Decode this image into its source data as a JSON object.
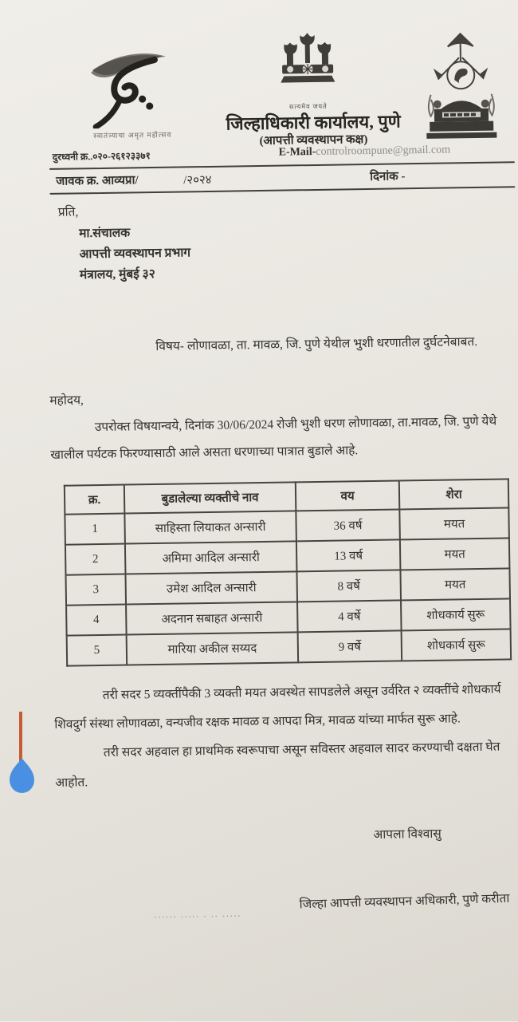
{
  "colors": {
    "paper": "#eae7e1",
    "ink": "#2f2e2a",
    "email_faded": "#8f8d86",
    "caret_line": "#c75b35",
    "selection_handle": "#4a90e2"
  },
  "document": {
    "header": {
      "amrit_logo_caption": "स्वातंत्र्याचा अमृत महोत्सव",
      "emblem_caption": "सत्यमेव जयते",
      "office_title": "जिल्हाधिकारी कार्यालय, पुणे",
      "office_subtitle": "(आपत्ती व्यवस्थापन कक्ष)",
      "phone_line": "दुरध्वनी क्र..०२०-२६१२३३७१",
      "email_label": "E-Mail-",
      "email_value": "controlroompune@gmail.com",
      "outward_label": "जावक क्र. आव्यप्रा/",
      "outward_year": "/२०२४",
      "date_label": "दिनांक -"
    },
    "recipient": {
      "salutation": "प्रति,",
      "lines": [
        "मा.संचालक",
        "आपत्ती व्यवस्थापन प्रभाग",
        "मंत्रालय, मुंबई ३२"
      ]
    },
    "subject_line": "विषय- लोणावळा, ता. मावळ, जि. पुणे येथील भुशी धरणातील दुर्घटनेबाबत.",
    "greeting": "महोदय,",
    "para1_lines": [
      "उपरोक्त विषयान्वये, दिनांक 30/06/2024 रोजी भुशी धरण लोणावळा, ता.मावळ, जि. पुणे येथे",
      "खालील पर्यटक फिरण्यासाठी आले असता धरणाच्या पात्रात बुडाले आहे."
    ],
    "table": {
      "headers": [
        "क्र.",
        "बुडालेल्या व्यक्तीचे नाव",
        "वय",
        "शेरा"
      ],
      "rows": [
        [
          "1",
          "साहिस्ता लियाकत अन्सारी",
          "36 वर्ष",
          "मयत"
        ],
        [
          "2",
          "अमिमा आदिल अन्सारी",
          "13 वर्ष",
          "मयत"
        ],
        [
          "3",
          "उमेश आदिल अन्सारी",
          "8 वर्षे",
          "मयत"
        ],
        [
          "4",
          "अदनान सबाहत अन्सारी",
          "4 वर्षे",
          "शोधकार्य सुरू"
        ],
        [
          "5",
          "मारिया अकील सय्यद",
          "9 वर्षे",
          "शोधकार्य सुरू"
        ]
      ]
    },
    "para2_lines": [
      "तरी सदर 5 व्यक्तींपैकी 3 व्यक्ती मयत अवस्थेत सापडलेले असून उर्वरित २ व्यक्तींचे शोधकार्य",
      "शिवदुर्ग संस्था लोणावळा, वन्यजीव रक्षक मावळ व आपदा मित्र, मावळ यांच्या मार्फत सुरू आहे."
    ],
    "para3_lines": [
      "तरी सदर अहवाल हा प्राथमिक स्वरूपाचा असून सविस्तर अहवाल सादर करण्याची दक्षता घेत",
      "आहोत."
    ],
    "sign_off": "आपला विश्वासु",
    "signatory": "जिल्हा आपत्ती व्यवस्थापन अधिकारी, पुणे करीता",
    "stray_dots": "......  .....  .  ..  ....."
  }
}
